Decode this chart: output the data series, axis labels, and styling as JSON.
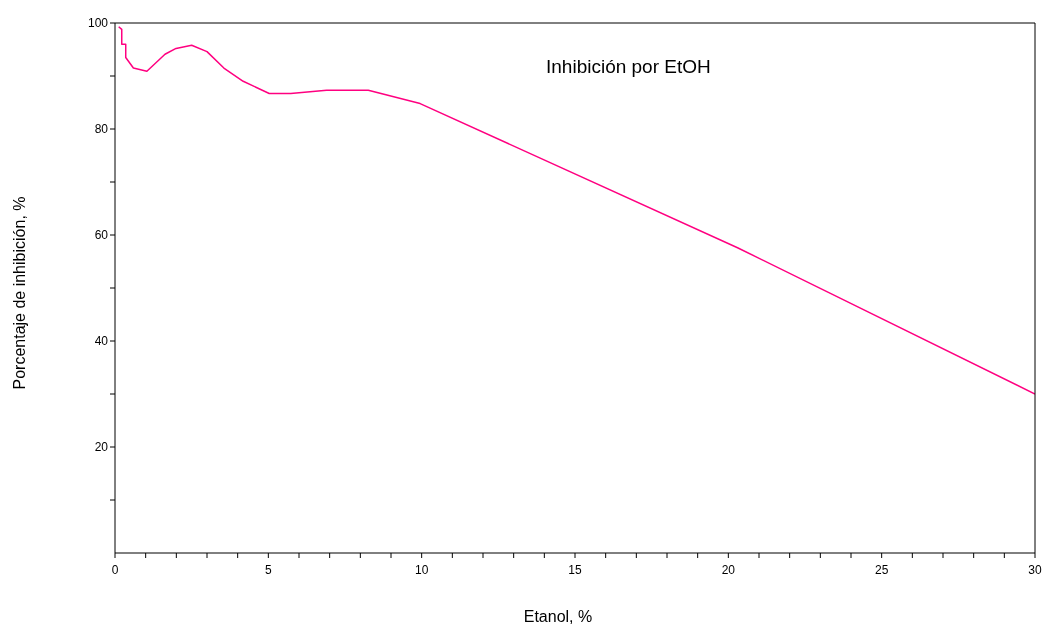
{
  "chart_data": {
    "type": "line",
    "title": "Inhibición por EtOH",
    "xlabel": "Etanol, %",
    "ylabel": "Porcentaje de inhibición, %",
    "x": [
      0.12,
      0.22,
      0.22,
      0.35,
      0.35,
      0.6,
      1.04,
      1.63,
      1.99,
      2.5,
      3.0,
      3.55,
      4.18,
      5.03,
      5.73,
      6.9,
      8.26,
      9.95,
      20.3,
      30
    ],
    "series": [
      {
        "color": "#ff0080",
        "values": [
          99.3,
          98.8,
          96.0,
          96.0,
          93.5,
          91.5,
          90.9,
          94.1,
          95.2,
          95.8,
          94.6,
          91.5,
          89.0,
          86.7,
          86.7,
          87.3,
          87.3,
          84.8,
          57.6,
          30.0
        ]
      }
    ],
    "xlim": [
      0,
      30
    ],
    "ylim": [
      0,
      100
    ],
    "xticks": [
      0,
      {
        "value": 1,
        "label": null
      },
      {
        "value": 2,
        "label": null
      },
      {
        "value": 3,
        "label": null
      },
      {
        "value": 4,
        "label": null
      },
      5,
      {
        "value": 6,
        "label": null
      },
      {
        "value": 7,
        "label": null
      },
      {
        "value": 8,
        "label": null
      },
      {
        "value": 9,
        "label": null
      },
      10,
      {
        "value": 11,
        "label": null
      },
      {
        "value": 12,
        "label": null
      },
      {
        "value": 13,
        "label": null
      },
      {
        "value": 14,
        "label": null
      },
      15,
      {
        "value": 16,
        "label": null
      },
      {
        "value": 17,
        "label": null
      },
      {
        "value": 18,
        "label": null
      },
      {
        "value": 19,
        "label": null
      },
      20,
      {
        "value": 21,
        "label": null
      },
      {
        "value": 22,
        "label": null
      },
      {
        "value": 23,
        "label": null
      },
      {
        "value": 24,
        "label": null
      },
      25,
      {
        "value": 26,
        "label": null
      },
      {
        "value": 27,
        "label": null
      },
      {
        "value": 28,
        "label": null
      },
      {
        "value": 29,
        "label": null
      },
      30
    ],
    "yticks": [
      {
        "value": 10,
        "label": null
      },
      20,
      {
        "value": 30,
        "label": null
      },
      40,
      {
        "value": 50,
        "label": null
      },
      60,
      {
        "value": 70,
        "label": null
      },
      80,
      {
        "value": 90,
        "label": null
      },
      100
    ],
    "grid": false,
    "legend": false,
    "marker": "none",
    "line_style": "solid"
  }
}
